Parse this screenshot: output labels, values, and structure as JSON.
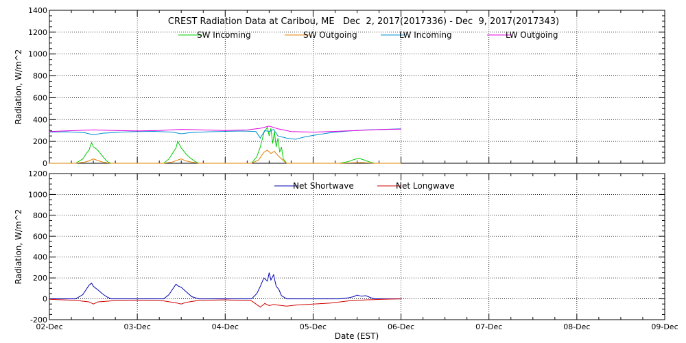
{
  "title": "CREST Radiation Data at Caribou, ME   Dec  2, 2017(2017336) - Dec  9, 2017(2017343)",
  "xlabel": "Date (EST)",
  "x_ticks": [
    "02-Dec",
    "03-Dec",
    "04-Dec",
    "05-Dec",
    "06-Dec",
    "07-Dec",
    "08-Dec",
    "09-Dec"
  ],
  "colors": {
    "sw_incoming": "#00cc00",
    "sw_outgoing": "#e08000",
    "lw_incoming": "#0090d0",
    "lw_outgoing": "#e000e0",
    "net_shortwave": "#0000b0",
    "net_longwave": "#d00000"
  },
  "chart_data": [
    {
      "type": "line",
      "ylabel": "Radiation, W/m^2",
      "ylim": [
        0,
        1400
      ],
      "y_ticks": [
        0,
        200,
        400,
        600,
        800,
        1000,
        1200,
        1400
      ],
      "xlim": [
        0,
        7
      ],
      "x_unit": "days since 02-Dec",
      "grid": true,
      "legend": "top-center",
      "series": [
        {
          "name": "SW Incoming",
          "color_key": "sw_incoming",
          "x": [
            0,
            0.3,
            0.38,
            0.42,
            0.45,
            0.48,
            0.5,
            0.52,
            0.55,
            0.58,
            0.62,
            0.66,
            0.7,
            1.3,
            1.36,
            1.4,
            1.44,
            1.46,
            1.48,
            1.5,
            1.53,
            1.56,
            1.6,
            1.65,
            1.7,
            2.3,
            2.36,
            2.4,
            2.44,
            2.48,
            2.5,
            2.52,
            2.54,
            2.56,
            2.58,
            2.6,
            2.62,
            2.64,
            2.66,
            2.7,
            3.3,
            3.4,
            3.45,
            3.48,
            3.52,
            3.55,
            3.58,
            3.62,
            3.66,
            3.7,
            4.0
          ],
          "y": [
            0,
            0,
            40,
            90,
            120,
            190,
            150,
            140,
            120,
            90,
            50,
            15,
            0,
            0,
            40,
            90,
            140,
            200,
            170,
            140,
            110,
            80,
            50,
            20,
            0,
            0,
            60,
            150,
            280,
            330,
            250,
            320,
            180,
            290,
            150,
            230,
            100,
            150,
            40,
            0,
            0,
            15,
            30,
            38,
            42,
            38,
            30,
            18,
            8,
            0,
            0
          ]
        },
        {
          "name": "SW Outgoing",
          "color_key": "sw_outgoing",
          "x": [
            0,
            0.3,
            0.4,
            0.45,
            0.5,
            0.55,
            0.6,
            0.66,
            0.7,
            1.3,
            1.4,
            1.46,
            1.5,
            1.55,
            1.62,
            1.7,
            2.3,
            2.38,
            2.44,
            2.48,
            2.52,
            2.56,
            2.6,
            2.64,
            2.68,
            2.7,
            3.3,
            3.45,
            3.55,
            3.7,
            4.0
          ],
          "y": [
            0,
            0,
            10,
            22,
            40,
            25,
            12,
            3,
            0,
            0,
            12,
            30,
            40,
            22,
            10,
            0,
            0,
            30,
            100,
            120,
            90,
            110,
            70,
            40,
            10,
            0,
            0,
            4,
            6,
            0,
            0
          ]
        },
        {
          "name": "LW Incoming",
          "color_key": "lw_incoming",
          "x": [
            0,
            0.2,
            0.4,
            0.5,
            0.6,
            0.8,
            1.0,
            1.2,
            1.4,
            1.5,
            1.6,
            1.8,
            2.0,
            2.2,
            2.35,
            2.4,
            2.45,
            2.5,
            2.55,
            2.6,
            2.7,
            2.8,
            2.9,
            3.0,
            3.2,
            3.4,
            3.6,
            3.8,
            4.0
          ],
          "y": [
            285,
            288,
            280,
            260,
            275,
            285,
            290,
            292,
            285,
            270,
            280,
            288,
            292,
            295,
            290,
            230,
            300,
            290,
            310,
            250,
            230,
            220,
            240,
            255,
            280,
            295,
            305,
            310,
            315
          ]
        },
        {
          "name": "LW Outgoing",
          "color_key": "lw_outgoing",
          "x": [
            0,
            0.25,
            0.5,
            0.75,
            1.0,
            1.25,
            1.5,
            1.75,
            2.0,
            2.25,
            2.4,
            2.5,
            2.6,
            2.75,
            3.0,
            3.25,
            3.5,
            3.75,
            4.0
          ],
          "y": [
            290,
            298,
            305,
            300,
            296,
            300,
            310,
            305,
            300,
            305,
            320,
            340,
            315,
            290,
            285,
            292,
            300,
            308,
            312
          ]
        }
      ]
    },
    {
      "type": "line",
      "ylabel": "Radiation, W/m^2",
      "ylim": [
        -200,
        1200
      ],
      "y_ticks": [
        -200,
        0,
        200,
        400,
        600,
        800,
        1000,
        1200
      ],
      "xlim": [
        0,
        7
      ],
      "x_unit": "days since 02-Dec",
      "grid": true,
      "legend": "top-center",
      "series": [
        {
          "name": "Net Shortwave",
          "color_key": "net_shortwave",
          "x": [
            0,
            0.3,
            0.38,
            0.42,
            0.45,
            0.48,
            0.5,
            0.53,
            0.56,
            0.6,
            0.65,
            0.7,
            1.3,
            1.36,
            1.4,
            1.44,
            1.47,
            1.5,
            1.54,
            1.58,
            1.62,
            1.7,
            2.3,
            2.36,
            2.4,
            2.44,
            2.48,
            2.5,
            2.52,
            2.55,
            2.58,
            2.61,
            2.64,
            2.7,
            3.3,
            3.4,
            3.46,
            3.5,
            3.55,
            3.6,
            3.66,
            3.7,
            4.0
          ],
          "y": [
            0,
            0,
            40,
            90,
            130,
            150,
            120,
            100,
            80,
            50,
            20,
            0,
            0,
            40,
            90,
            140,
            120,
            110,
            80,
            50,
            20,
            0,
            0,
            50,
            120,
            200,
            170,
            250,
            180,
            230,
            120,
            90,
            30,
            0,
            0,
            10,
            20,
            35,
            25,
            30,
            10,
            0,
            0
          ]
        },
        {
          "name": "Net Longwave",
          "color_key": "net_longwave",
          "x": [
            0,
            0.3,
            0.45,
            0.5,
            0.55,
            0.7,
            1.0,
            1.3,
            1.45,
            1.5,
            1.55,
            1.7,
            2.0,
            2.3,
            2.4,
            2.45,
            2.5,
            2.55,
            2.6,
            2.7,
            2.8,
            3.0,
            3.2,
            3.4,
            3.6,
            3.8,
            4.0
          ],
          "y": [
            -5,
            -15,
            -30,
            -50,
            -30,
            -20,
            -15,
            -20,
            -40,
            -50,
            -35,
            -15,
            -10,
            -20,
            -80,
            -45,
            -65,
            -55,
            -60,
            -70,
            -60,
            -50,
            -40,
            -20,
            -10,
            -5,
            0
          ]
        }
      ]
    }
  ]
}
